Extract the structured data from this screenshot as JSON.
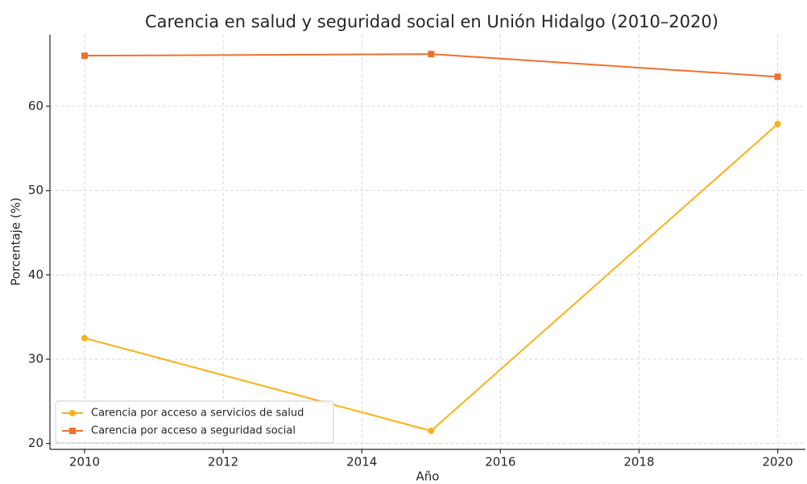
{
  "chart_data": {
    "type": "line",
    "title": "Carencia en salud y seguridad social en Unión Hidalgo (2010–2020)",
    "xlabel": "Año",
    "ylabel": "Porcentaje (%)",
    "x": [
      2010,
      2015,
      2020
    ],
    "series": [
      {
        "name": "Carencia por acceso a servicios de salud",
        "color": "#fbb117",
        "marker": "circle",
        "values": [
          32.5,
          21.5,
          57.9
        ]
      },
      {
        "name": "Carencia por acceso a seguridad social",
        "color": "#f07030",
        "marker": "square",
        "values": [
          66.0,
          66.2,
          63.5
        ]
      }
    ],
    "xlim": [
      2009.5,
      2020.4
    ],
    "xticks": [
      2010,
      2012,
      2014,
      2016,
      2018,
      2020
    ],
    "ylim": [
      19.3,
      68.5
    ],
    "yticks": [
      20,
      30,
      40,
      50,
      60
    ],
    "grid": true,
    "legend": "lower left"
  }
}
